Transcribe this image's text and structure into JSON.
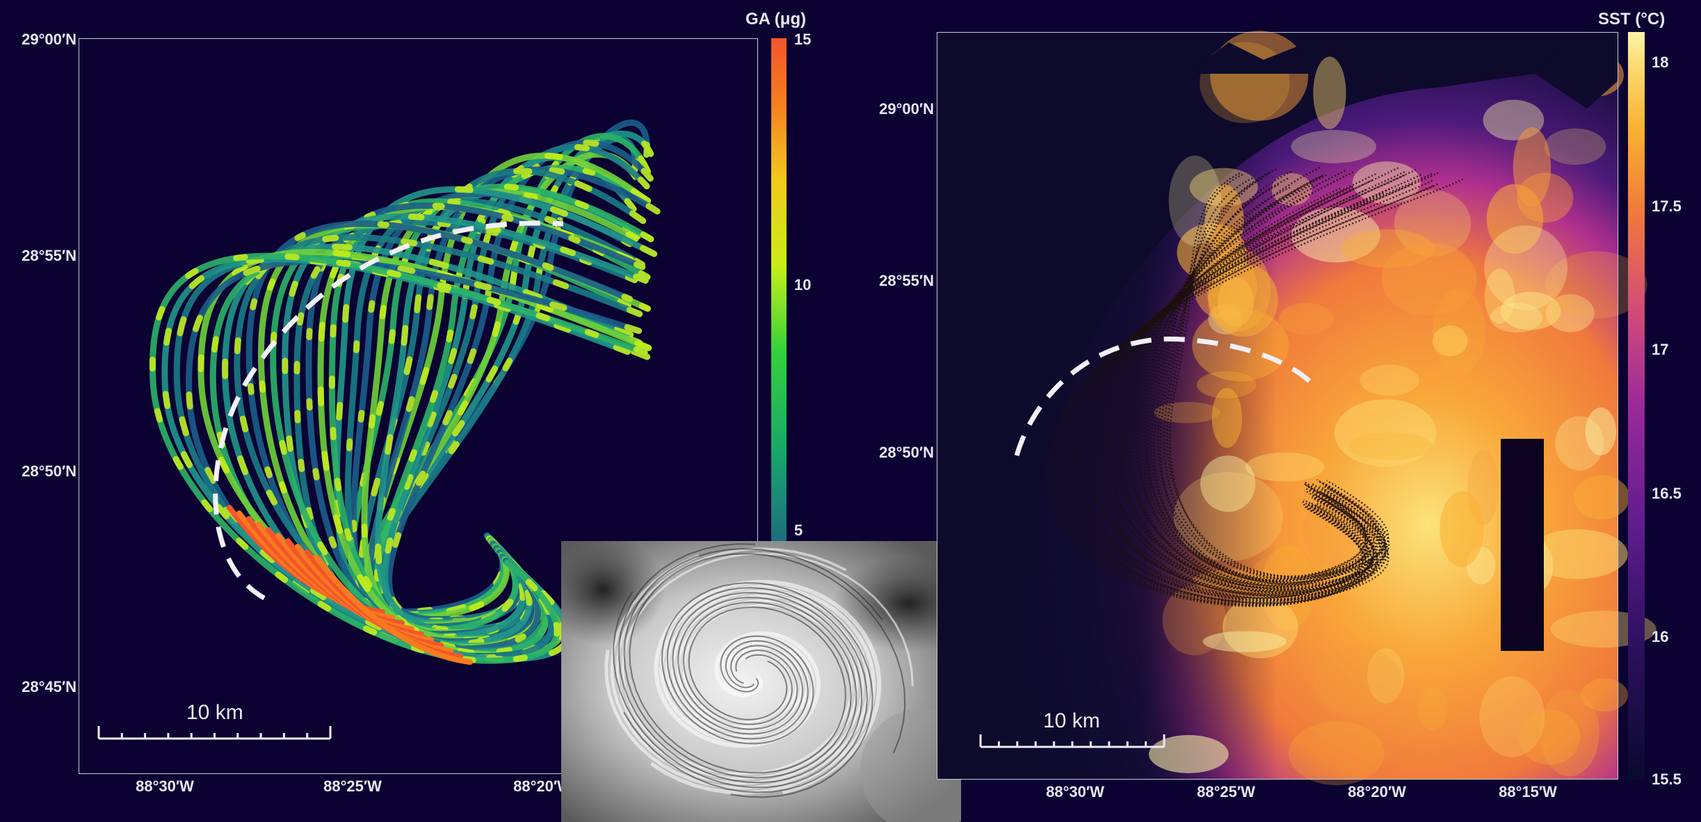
{
  "left_map": {
    "lat_ticks": [
      "29°00′N",
      "28°55′N",
      "28°50′N",
      "28°45′N"
    ],
    "lon_ticks": [
      "88°30′W",
      "88°25′W",
      "88°20′W"
    ],
    "colorbar": {
      "title": "GA (μg)",
      "ticks": [
        "15",
        "10",
        "5"
      ],
      "range": [
        4.5,
        15
      ],
      "colors": [
        "#1c6d7e",
        "#17a86a",
        "#33d33a",
        "#c9ee1a",
        "#f2c81c",
        "#f77a1f",
        "#f4552b"
      ]
    },
    "scale_bar": "10 km"
  },
  "right_map": {
    "lat_ticks": [
      "29°00′N",
      "28°55′N",
      "28°50′N"
    ],
    "lon_ticks": [
      "88°30′W",
      "88°25′W",
      "88°20′W",
      "88°15′W"
    ],
    "colorbar": {
      "title": "SST (°C)",
      "ticks": [
        "18",
        "17.5",
        "17",
        "16.5",
        "16",
        "15.5"
      ],
      "range": [
        15.5,
        18.1
      ],
      "colors": [
        "#0a0a2e",
        "#2b0f5c",
        "#5e1d8c",
        "#9a2a9a",
        "#d0497a",
        "#f07a3c",
        "#f9b132",
        "#fcd86e",
        "#fbf4a8"
      ]
    },
    "scale_bar": "10 km"
  },
  "inset": {
    "icon": "satellite-cyclone-image"
  },
  "colors": {
    "background": "#0b0232",
    "dashed_front": "#f2f0f8",
    "axis_frame": "#c9c6d8"
  }
}
